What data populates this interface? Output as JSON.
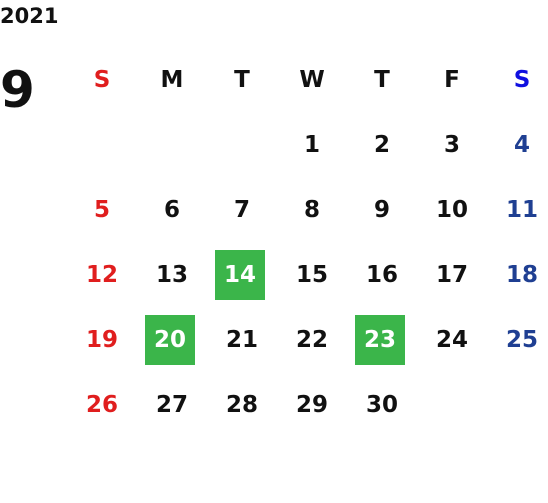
{
  "year": "2021",
  "month": "9",
  "weekdays": [
    "S",
    "M",
    "T",
    "W",
    "T",
    "F",
    "S"
  ],
  "weeks": [
    [
      null,
      null,
      null,
      {
        "day": 1,
        "highlight": false
      },
      {
        "day": 2,
        "highlight": false
      },
      {
        "day": 3,
        "highlight": false
      },
      {
        "day": 4,
        "highlight": false
      }
    ],
    [
      {
        "day": 5,
        "highlight": false
      },
      {
        "day": 6,
        "highlight": false
      },
      {
        "day": 7,
        "highlight": false
      },
      {
        "day": 8,
        "highlight": false
      },
      {
        "day": 9,
        "highlight": false
      },
      {
        "day": 10,
        "highlight": false
      },
      {
        "day": 11,
        "highlight": false
      }
    ],
    [
      {
        "day": 12,
        "highlight": false
      },
      {
        "day": 13,
        "highlight": false
      },
      {
        "day": 14,
        "highlight": true
      },
      {
        "day": 15,
        "highlight": false
      },
      {
        "day": 16,
        "highlight": false
      },
      {
        "day": 17,
        "highlight": false
      },
      {
        "day": 18,
        "highlight": false
      }
    ],
    [
      {
        "day": 19,
        "highlight": false
      },
      {
        "day": 20,
        "highlight": true
      },
      {
        "day": 21,
        "highlight": false
      },
      {
        "day": 22,
        "highlight": false
      },
      {
        "day": 23,
        "highlight": true
      },
      {
        "day": 24,
        "highlight": false
      },
      {
        "day": 25,
        "highlight": false
      }
    ],
    [
      {
        "day": 26,
        "highlight": false
      },
      {
        "day": 27,
        "highlight": false
      },
      {
        "day": 28,
        "highlight": false
      },
      {
        "day": 29,
        "highlight": false
      },
      {
        "day": 30,
        "highlight": false
      },
      null,
      null
    ]
  ]
}
